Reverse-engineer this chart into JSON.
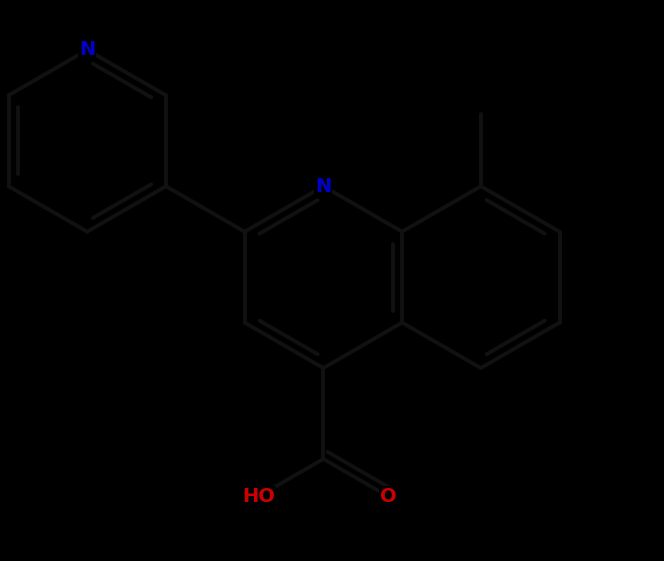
{
  "background_color": "#000000",
  "bond_color": "#111111",
  "N_color": "#0000cc",
  "O_color": "#cc0000",
  "bond_width": 2.8,
  "font_size_atom": 14,
  "scale": 0.95,
  "view_xlim": [
    -0.3,
    6.64
  ],
  "view_ylim": [
    -0.2,
    5.61
  ]
}
